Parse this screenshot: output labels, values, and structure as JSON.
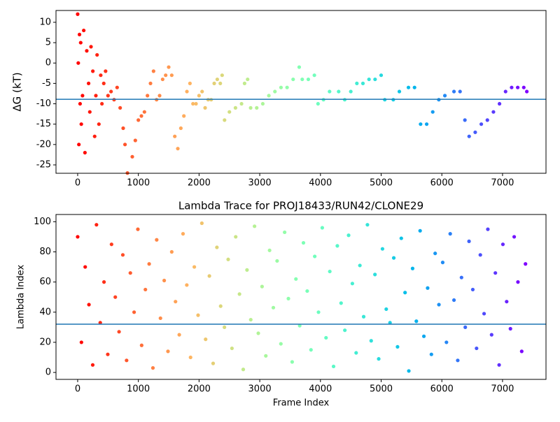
{
  "chart_data": [
    {
      "type": "scatter",
      "ylabel": "ΔG (kT)",
      "colormap": "rainbow_r",
      "hline": -8.9,
      "hline_color": "#1f77b4",
      "xlim": [
        -357,
        7716
      ],
      "ylim": [
        -27.06,
        12.9
      ],
      "xticks": [
        0,
        1000,
        2000,
        3000,
        4000,
        5000,
        6000,
        7000
      ],
      "yticks": [
        -25,
        -20,
        -15,
        -10,
        -5,
        0,
        5,
        10
      ],
      "x": [
        0,
        10,
        20,
        30,
        40,
        50,
        60,
        80,
        100,
        120,
        150,
        180,
        200,
        220,
        250,
        280,
        300,
        320,
        350,
        380,
        400,
        430,
        460,
        500,
        550,
        600,
        650,
        700,
        750,
        780,
        820,
        900,
        950,
        1000,
        1050,
        1100,
        1150,
        1200,
        1250,
        1300,
        1350,
        1400,
        1450,
        1500,
        1550,
        1600,
        1650,
        1700,
        1750,
        1800,
        1850,
        1900,
        1950,
        2000,
        2050,
        2100,
        2150,
        2200,
        2250,
        2300,
        2350,
        2380,
        2420,
        2500,
        2600,
        2700,
        2750,
        2800,
        2850,
        2950,
        3050,
        3150,
        3250,
        3350,
        3450,
        3550,
        3650,
        3700,
        3800,
        3900,
        3960,
        4050,
        4150,
        4300,
        4400,
        4500,
        4600,
        4700,
        4800,
        4900,
        5000,
        5060,
        5200,
        5300,
        5450,
        5550,
        5650,
        5750,
        5850,
        5950,
        6050,
        6200,
        6300,
        6380,
        6450,
        6550,
        6650,
        6750,
        6850,
        6950,
        7050,
        7150,
        7250,
        7350,
        7400
      ],
      "values": [
        12,
        0,
        -20,
        7,
        -10,
        5,
        -15,
        -8,
        8,
        -22,
        3,
        -5,
        -12,
        4,
        -2,
        -18,
        -8,
        2,
        -15,
        -3,
        -10,
        -5,
        -2,
        -8,
        -7,
        -9,
        -6,
        -11,
        -16,
        -20,
        -27,
        -23,
        -19,
        -14,
        -13,
        -12,
        -8,
        -5,
        -2,
        -9,
        -8,
        -4,
        -3,
        -1,
        -3,
        -18,
        -21,
        -16,
        -13,
        -7,
        -5,
        -10,
        -10,
        -8,
        -7,
        -11,
        -9,
        -9,
        -5,
        -4,
        -5,
        -3,
        -14,
        -12,
        -11,
        -10,
        -5,
        -4,
        -11,
        -11,
        -10,
        -8,
        -7,
        -6,
        -6,
        -4,
        -1,
        -4,
        -4,
        -3,
        -10,
        -9,
        -7,
        -7,
        -9,
        -7,
        -5,
        -5,
        -4,
        -4,
        -3,
        -9,
        -9,
        -7,
        -6,
        -6,
        -15,
        -15,
        -12,
        -9,
        -8,
        -7,
        -7,
        -14,
        -18,
        -17,
        -15,
        -14,
        -12,
        -10,
        -7,
        -6,
        -6,
        -6,
        -7
      ]
    },
    {
      "type": "scatter",
      "title": "Lambda Trace for PROJ18433/RUN42/CLONE29",
      "xlabel": "Frame Index",
      "ylabel": "Lambda Index",
      "colormap": "rainbow_r",
      "hline": 32,
      "hline_color": "#1f77b4",
      "xlim": [
        -357,
        7716
      ],
      "ylim": [
        -4.6,
        104.8
      ],
      "xticks": [
        0,
        1000,
        2000,
        3000,
        4000,
        5000,
        6000,
        7000
      ],
      "yticks": [
        0,
        20,
        40,
        60,
        80,
        100
      ],
      "x": [
        0,
        62,
        124,
        186,
        248,
        310,
        372,
        434,
        496,
        558,
        620,
        682,
        744,
        806,
        868,
        930,
        992,
        1054,
        1116,
        1178,
        1240,
        1302,
        1364,
        1426,
        1488,
        1550,
        1612,
        1674,
        1736,
        1798,
        1860,
        1922,
        1984,
        2046,
        2108,
        2170,
        2232,
        2294,
        2356,
        2418,
        2480,
        2542,
        2604,
        2666,
        2728,
        2790,
        2852,
        2914,
        2976,
        3038,
        3100,
        3162,
        3224,
        3286,
        3348,
        3410,
        3472,
        3534,
        3596,
        3658,
        3720,
        3782,
        3844,
        3906,
        3968,
        4030,
        4092,
        4154,
        4216,
        4278,
        4340,
        4402,
        4464,
        4526,
        4588,
        4650,
        4712,
        4774,
        4836,
        4898,
        4960,
        5022,
        5084,
        5146,
        5208,
        5270,
        5332,
        5394,
        5456,
        5518,
        5580,
        5642,
        5704,
        5766,
        5828,
        5890,
        5952,
        6014,
        6076,
        6138,
        6200,
        6262,
        6324,
        6386,
        6448,
        6510,
        6572,
        6634,
        6696,
        6758,
        6820,
        6882,
        6944,
        7006,
        7068,
        7130,
        7192,
        7254,
        7316,
        7378
      ],
      "values": [
        90,
        20,
        70,
        45,
        5,
        98,
        33,
        60,
        12,
        85,
        50,
        27,
        78,
        8,
        66,
        40,
        95,
        18,
        55,
        72,
        3,
        88,
        36,
        61,
        14,
        80,
        47,
        25,
        92,
        58,
        10,
        70,
        38,
        99,
        22,
        64,
        6,
        83,
        44,
        30,
        75,
        16,
        90,
        52,
        2,
        68,
        35,
        97,
        26,
        57,
        11,
        81,
        43,
        74,
        19,
        93,
        49,
        7,
        62,
        31,
        86,
        54,
        15,
        77,
        40,
        96,
        23,
        67,
        4,
        84,
        46,
        28,
        91,
        59,
        13,
        71,
        37,
        98,
        21,
        65,
        9,
        82,
        42,
        33,
        76,
        17,
        89,
        53,
        1,
        69,
        34,
        94,
        24,
        56,
        12,
        79,
        45,
        73,
        20,
        92,
        48,
        8,
        63,
        30,
        87,
        55,
        16,
        78,
        39,
        95,
        25,
        66,
        5,
        85,
        47,
        29,
        90,
        60,
        14,
        72
      ]
    }
  ]
}
